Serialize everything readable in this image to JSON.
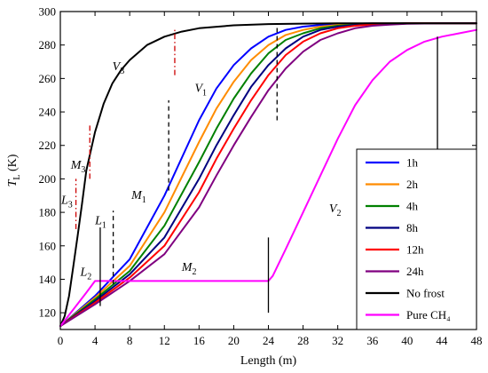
{
  "chart_data": {
    "type": "line",
    "xlabel": "Length (m)",
    "ylabel": {
      "main": "T",
      "sub": "L",
      "unit": " (K)"
    },
    "xlim": [
      0,
      48
    ],
    "ylim": [
      110,
      300
    ],
    "xticks": [
      0,
      4,
      8,
      12,
      16,
      20,
      24,
      28,
      32,
      36,
      40,
      44,
      48
    ],
    "yticks": [
      120,
      140,
      160,
      180,
      200,
      220,
      240,
      260,
      280,
      300
    ],
    "grid": false,
    "legend_position": "bottom-right",
    "series": [
      {
        "name": "1h",
        "color": "#0000FF",
        "x": [
          0,
          4,
          8,
          12,
          16,
          18,
          20,
          22,
          24,
          26,
          28,
          30,
          32,
          36,
          40,
          44,
          48
        ],
        "y": [
          112,
          130,
          152,
          190,
          235,
          254,
          268,
          278,
          285,
          289,
          291,
          292,
          292.5,
          293,
          293,
          293,
          293
        ]
      },
      {
        "name": "2h",
        "color": "#FF8C00",
        "x": [
          0,
          4,
          8,
          12,
          16,
          18,
          20,
          22,
          24,
          26,
          28,
          30,
          32,
          36,
          40,
          44,
          48
        ],
        "y": [
          112,
          129,
          148,
          180,
          222,
          242,
          258,
          271,
          280,
          286,
          289,
          291,
          292,
          293,
          293,
          293,
          293
        ]
      },
      {
        "name": "4h",
        "color": "#008000",
        "x": [
          0,
          4,
          8,
          12,
          16,
          18,
          20,
          22,
          24,
          26,
          28,
          30,
          32,
          36,
          40,
          44,
          48
        ],
        "y": [
          112,
          128,
          145,
          172,
          210,
          230,
          248,
          263,
          275,
          283,
          287,
          290,
          291.5,
          292.8,
          293,
          293,
          293
        ]
      },
      {
        "name": "8h",
        "color": "#000080",
        "x": [
          0,
          4,
          8,
          12,
          16,
          18,
          20,
          22,
          24,
          26,
          28,
          30,
          32,
          34,
          36,
          40,
          44,
          48
        ],
        "y": [
          112,
          127,
          143,
          165,
          200,
          220,
          238,
          255,
          268,
          278,
          285,
          289,
          291,
          292,
          292.5,
          293,
          293,
          293
        ]
      },
      {
        "name": "12h",
        "color": "#FF0000",
        "x": [
          0,
          4,
          8,
          12,
          16,
          18,
          20,
          22,
          24,
          26,
          28,
          30,
          32,
          34,
          36,
          40,
          44,
          48
        ],
        "y": [
          112,
          126,
          141,
          160,
          192,
          212,
          230,
          247,
          262,
          274,
          282,
          287,
          290,
          291.5,
          292.3,
          293,
          293,
          293
        ]
      },
      {
        "name": "24h",
        "color": "#800080",
        "x": [
          0,
          4,
          8,
          12,
          16,
          18,
          20,
          22,
          24,
          26,
          28,
          30,
          32,
          34,
          36,
          38,
          40,
          44,
          48
        ],
        "y": [
          112,
          125,
          139,
          155,
          183,
          202,
          220,
          237,
          253,
          266,
          276,
          283,
          287,
          290,
          291.5,
          292.2,
          292.7,
          293,
          293
        ]
      },
      {
        "name": "No frost",
        "color": "#000000",
        "x": [
          0,
          0.5,
          1,
          1.5,
          2,
          2.5,
          3,
          4,
          5,
          6,
          7,
          8,
          10,
          12,
          14,
          16,
          20,
          24,
          28,
          32,
          40,
          48
        ],
        "y": [
          112,
          118,
          130,
          148,
          166,
          185,
          205,
          228,
          245,
          257,
          265,
          271,
          280,
          285,
          288,
          290,
          291.8,
          292.5,
          292.8,
          293,
          293,
          293
        ]
      },
      {
        "name": "Pure CH₄",
        "color": "#FF00FF",
        "x": [
          0,
          1.5,
          3,
          4,
          5,
          8,
          12,
          16,
          20,
          24,
          24.5,
          26,
          28,
          30,
          32,
          34,
          36,
          38,
          40,
          42,
          44,
          46,
          48
        ],
        "y": [
          112,
          122,
          132,
          139,
          139,
          139,
          139,
          139,
          139,
          139,
          142,
          158,
          180,
          202,
          224,
          244,
          259,
          270,
          277,
          282,
          285,
          287,
          289
        ]
      }
    ],
    "annotations": [
      {
        "main": "V",
        "sub": "3",
        "x": 6,
        "y": 265,
        "color": "#000000"
      },
      {
        "main": "V",
        "sub": "1",
        "x": 15.5,
        "y": 252,
        "color": "#000000"
      },
      {
        "main": "V",
        "sub": "2",
        "x": 31,
        "y": 180,
        "color": "#000000"
      },
      {
        "main": "M",
        "sub": "3",
        "x": 1.2,
        "y": 206,
        "color": "#000000"
      },
      {
        "main": "M",
        "sub": "1",
        "x": 8.2,
        "y": 188,
        "color": "#000000"
      },
      {
        "main": "M",
        "sub": "2",
        "x": 14,
        "y": 145,
        "color": "#000000"
      },
      {
        "main": "L",
        "sub": "3",
        "x": 0.1,
        "y": 185,
        "color": "#000000"
      },
      {
        "main": "L",
        "sub": "1",
        "x": 4,
        "y": 173,
        "color": "#000000"
      },
      {
        "main": "L",
        "sub": "2",
        "x": 2.3,
        "y": 142,
        "color": "#000000"
      }
    ],
    "markers": [
      {
        "x": 1.8,
        "y1": 170,
        "y2": 200,
        "style": "dashdot",
        "color": "#CC0000"
      },
      {
        "x": 3.4,
        "y1": 200,
        "y2": 232,
        "style": "dashdot",
        "color": "#CC0000"
      },
      {
        "x": 13.2,
        "y1": 262,
        "y2": 290,
        "style": "dashdot",
        "color": "#CC0000"
      },
      {
        "x": 6.1,
        "y1": 137,
        "y2": 181,
        "style": "dashed",
        "color": "#000000"
      },
      {
        "x": 12.5,
        "y1": 193,
        "y2": 247,
        "style": "dashed",
        "color": "#000000"
      },
      {
        "x": 25,
        "y1": 235,
        "y2": 292,
        "style": "dashed",
        "color": "#000000"
      },
      {
        "x": 4.6,
        "y1": 124,
        "y2": 171,
        "style": "solid",
        "color": "#000000"
      },
      {
        "x": 24,
        "y1": 120,
        "y2": 165,
        "style": "solid",
        "color": "#000000"
      },
      {
        "x": 43.5,
        "y1": 174,
        "y2": 285,
        "style": "solid",
        "color": "#000000"
      }
    ]
  }
}
